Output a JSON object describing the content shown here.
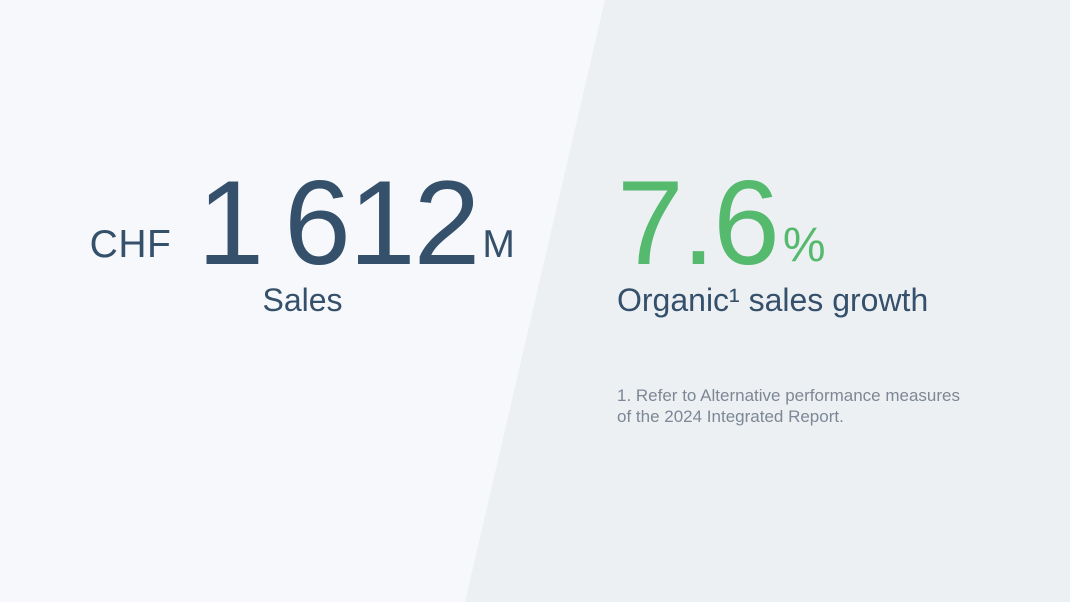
{
  "slide": {
    "left_stat": {
      "currency": "CHF",
      "value": "1 612",
      "unit": "M",
      "label": "Sales"
    },
    "right_stat": {
      "value": "7.6",
      "unit": "%",
      "label": "Organic¹ sales growth",
      "footnote": "1. Refer to Alternative performance measures\nof the 2024 Integrated Report."
    },
    "colors": {
      "background_left": "#f6f8fb",
      "background_right": "#ecf0f3",
      "primary_text": "#35506b",
      "accent_green": "#55b96e",
      "footnote_text": "#7d8795"
    }
  }
}
